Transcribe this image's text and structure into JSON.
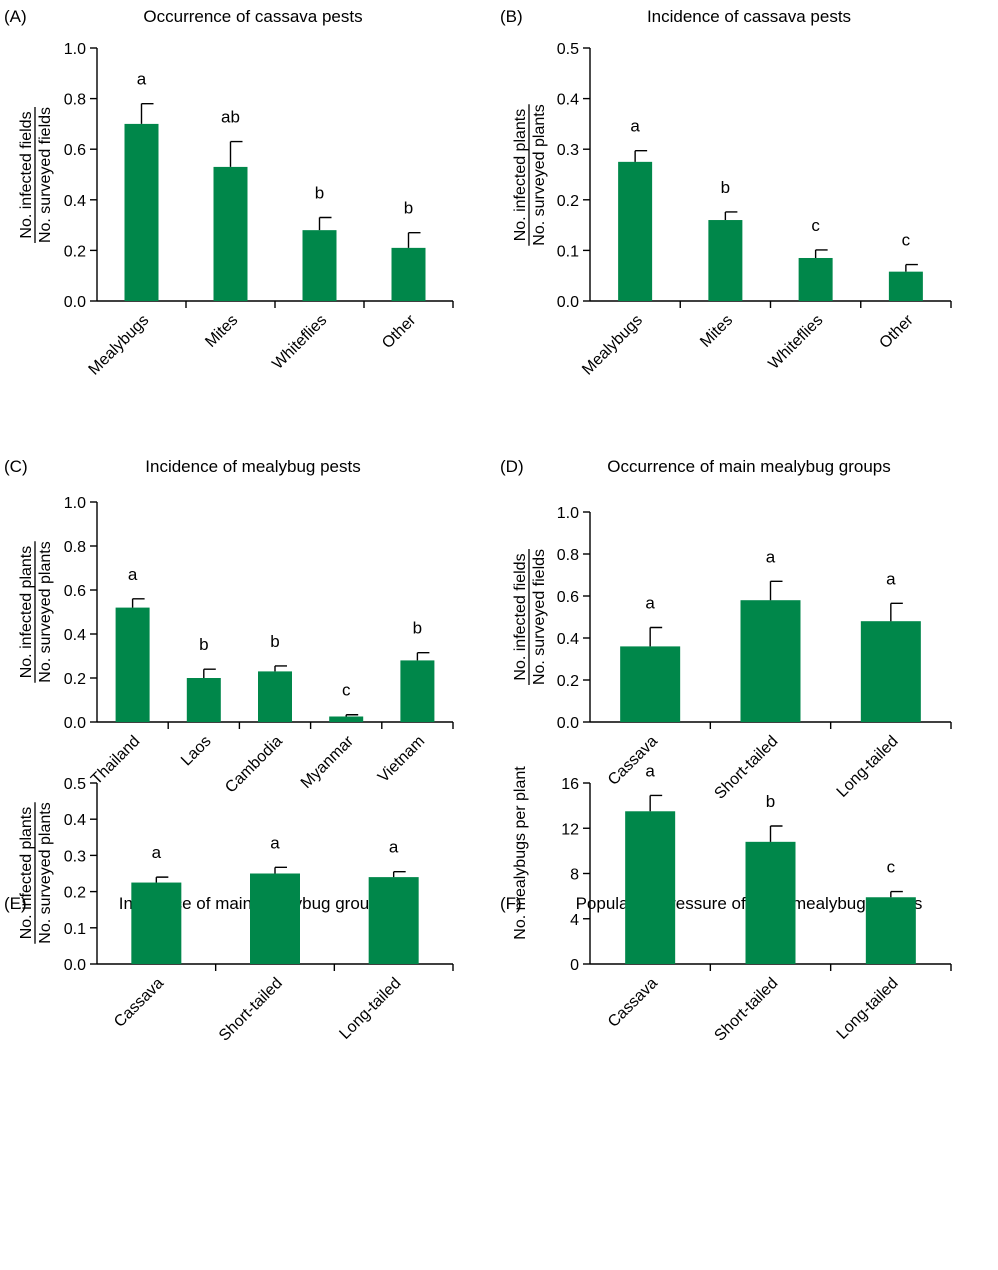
{
  "colors": {
    "bar": "#00874a"
  },
  "chart_data": [
    {
      "type": "bar",
      "panel": "(A)",
      "title": "Occurrence of cassava pests",
      "ylabel_numerator": "No. infected fields",
      "ylabel_denominator": "No. surveyed fields",
      "categories": [
        "Mealybugs",
        "Mites",
        "Whiteflies",
        "Other"
      ],
      "values": [
        0.7,
        0.53,
        0.28,
        0.21
      ],
      "errors": [
        0.08,
        0.1,
        0.05,
        0.06
      ],
      "letters": [
        "a",
        "ab",
        "b",
        "b"
      ],
      "ylim": [
        0,
        1.0
      ],
      "yticks": [
        "0.0",
        "0.2",
        "0.4",
        "0.6",
        "0.8",
        "1.0"
      ],
      "grid": false
    },
    {
      "type": "bar",
      "panel": "(B)",
      "title": "Incidence of cassava pests",
      "ylabel_numerator": "No. infected plants",
      "ylabel_denominator": "No. surveyed plants",
      "categories": [
        "Mealybugs",
        "Mites",
        "Whiteflies",
        "Other"
      ],
      "values": [
        0.275,
        0.16,
        0.085,
        0.058
      ],
      "errors": [
        0.022,
        0.016,
        0.016,
        0.014
      ],
      "letters": [
        "a",
        "b",
        "c",
        "c"
      ],
      "ylim": [
        0,
        0.5
      ],
      "yticks": [
        "0.0",
        "0.1",
        "0.2",
        "0.3",
        "0.4",
        "0.5"
      ],
      "grid": false
    },
    {
      "type": "bar",
      "panel": "(C)",
      "title": "Incidence of mealybug pests",
      "ylabel_numerator": "No. infected plants",
      "ylabel_denominator": "No. surveyed plants",
      "categories": [
        "Thailand",
        "Laos",
        "Cambodia",
        "Myanmar",
        "Vietnam"
      ],
      "values": [
        0.52,
        0.2,
        0.23,
        0.025,
        0.28
      ],
      "errors": [
        0.04,
        0.04,
        0.025,
        0.008,
        0.035
      ],
      "letters": [
        "a",
        "b",
        "b",
        "c",
        "b"
      ],
      "ylim": [
        0,
        1.0
      ],
      "yticks": [
        "0.0",
        "0.2",
        "0.4",
        "0.6",
        "0.8",
        "1.0"
      ],
      "grid": false
    },
    {
      "type": "bar",
      "panel": "(D)",
      "title": "Occurrence of main mealybug groups",
      "ylabel_numerator": "No. infected fields",
      "ylabel_denominator": "No. surveyed fields",
      "categories": [
        "Cassava",
        "Short-tailed",
        "Long-tailed"
      ],
      "values": [
        0.36,
        0.58,
        0.48
      ],
      "errors": [
        0.09,
        0.09,
        0.085
      ],
      "letters": [
        "a",
        "a",
        "a"
      ],
      "ylim": [
        0,
        1.0
      ],
      "yticks": [
        "0.0",
        "0.2",
        "0.4",
        "0.6",
        "0.8",
        "1.0"
      ],
      "grid": false
    },
    {
      "type": "bar",
      "panel": "(E)",
      "title": "Incidence of main mealybug groups",
      "ylabel_numerator": "No. infected plants",
      "ylabel_denominator": "No. surveyed plants",
      "categories": [
        "Cassava",
        "Short-tailed",
        "Long-tailed"
      ],
      "values": [
        0.225,
        0.25,
        0.24
      ],
      "errors": [
        0.015,
        0.017,
        0.015
      ],
      "letters": [
        "a",
        "a",
        "a"
      ],
      "ylim": [
        0,
        0.5
      ],
      "yticks": [
        "0.0",
        "0.1",
        "0.2",
        "0.3",
        "0.4",
        "0.5"
      ],
      "grid": false
    },
    {
      "type": "bar",
      "panel": "(F)",
      "title": "Population pressure of main mealybug groups",
      "ylabel": "No. mealybugs per plant",
      "categories": [
        "Cassava",
        "Short-tailed",
        "Long-tailed"
      ],
      "values": [
        13.5,
        10.8,
        5.9
      ],
      "errors": [
        1.4,
        1.4,
        0.5
      ],
      "letters": [
        "a",
        "b",
        "c"
      ],
      "ylim": [
        0,
        16
      ],
      "yticks": [
        "0",
        "4",
        "8",
        "12",
        "16"
      ],
      "grid": false
    }
  ]
}
